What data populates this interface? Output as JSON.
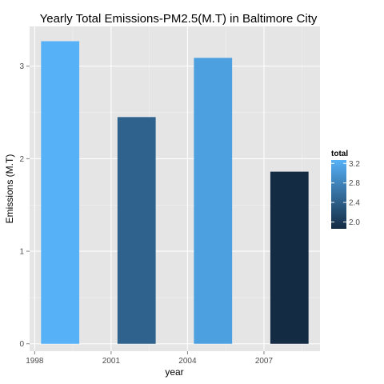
{
  "chart_data": {
    "type": "bar",
    "title": "Yearly Total Emissions-PM2.5(M.T) in Baltimore City",
    "xlabel": "year",
    "ylabel": "Emissions (M.T)",
    "x": [
      1999,
      2002,
      2005,
      2008
    ],
    "values": [
      3.27,
      2.45,
      3.09,
      1.86
    ],
    "xlim": [
      1997.8,
      2009.2
    ],
    "ylim": [
      -0.08,
      3.43
    ],
    "x_ticks": [
      1998,
      2001,
      2004,
      2007
    ],
    "x_tick_labels": [
      "1998",
      "2001",
      "2004",
      "2007"
    ],
    "y_ticks": [
      0,
      1,
      2,
      3
    ],
    "y_tick_labels": [
      "0",
      "1",
      "2",
      "3"
    ],
    "bar_width_years": 1.5,
    "grid": true,
    "panel_background": "#e5e5e5",
    "grid_color": "#ffffff",
    "legend": {
      "title": "total",
      "position": "right",
      "color_range": [
        1.86,
        3.27
      ],
      "low_color": "#132b43",
      "high_color": "#56b1f7",
      "ticks": [
        2.0,
        2.4,
        2.8,
        3.2
      ],
      "tick_labels": [
        "2.0",
        "2.4",
        "2.8",
        "3.2"
      ]
    }
  }
}
